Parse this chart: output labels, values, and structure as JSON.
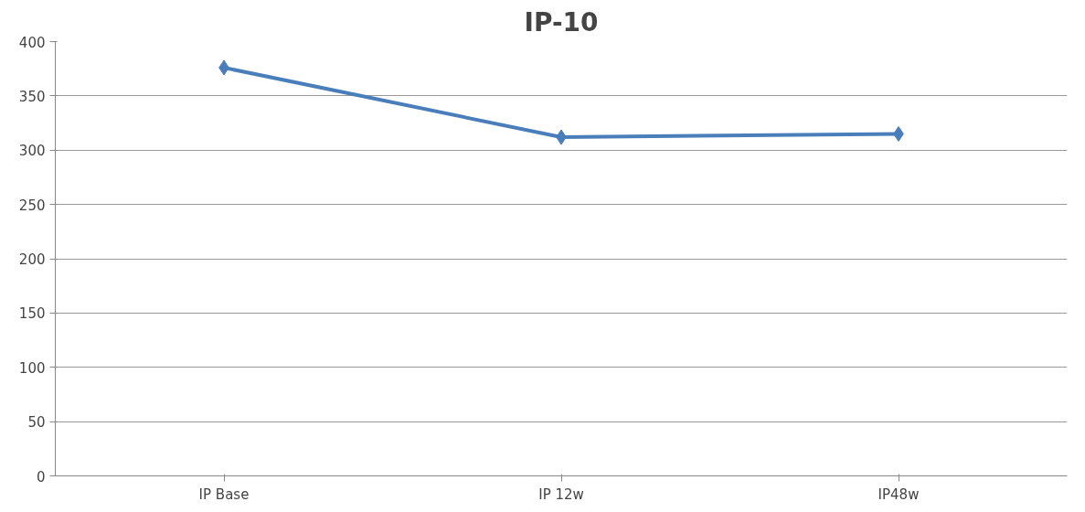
{
  "chart_data": {
    "type": "line",
    "title": "IP-10",
    "categories": [
      "IP Base",
      "IP 12w",
      "IP48w"
    ],
    "series": [
      {
        "color": "#4a7ebb",
        "values": [
          376,
          312,
          315
        ]
      }
    ],
    "ylim": [
      0,
      400
    ],
    "yticks": [
      0,
      50,
      100,
      150,
      200,
      250,
      300,
      350,
      400
    ],
    "grid": "y",
    "marker": "diamond",
    "line_style": "solid"
  }
}
